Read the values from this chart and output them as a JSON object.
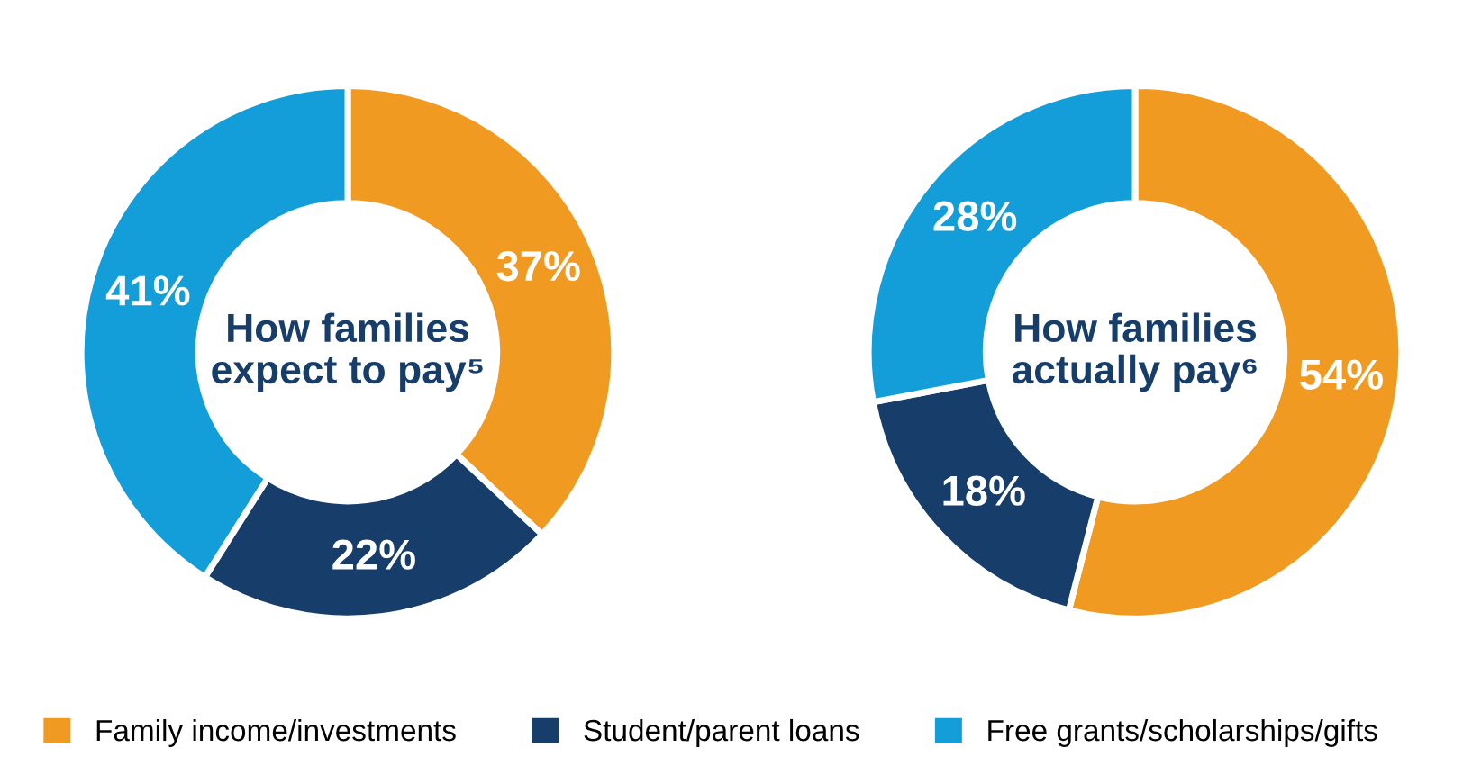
{
  "chart_data": [
    {
      "type": "donut",
      "title": "How families expect to pay⁵",
      "categories": [
        "Family income/investments",
        "Student/parent loans",
        "Free grants/scholarships/gifts"
      ],
      "values": [
        37,
        22,
        41
      ],
      "colors": [
        "#f09a22",
        "#173d6b",
        "#139ed9"
      ],
      "value_labels": [
        "37%",
        "22%",
        "41%"
      ],
      "legend": "bottom"
    },
    {
      "type": "donut",
      "title": "How families actually pay⁶",
      "categories": [
        null,
        null,
        null
      ],
      "values": [
        54,
        18,
        28
      ],
      "colors": [
        "#f09a22",
        "#173d6b",
        "#139ed9"
      ],
      "value_labels": [
        "54%",
        "18%",
        "28%"
      ]
    }
  ]
}
